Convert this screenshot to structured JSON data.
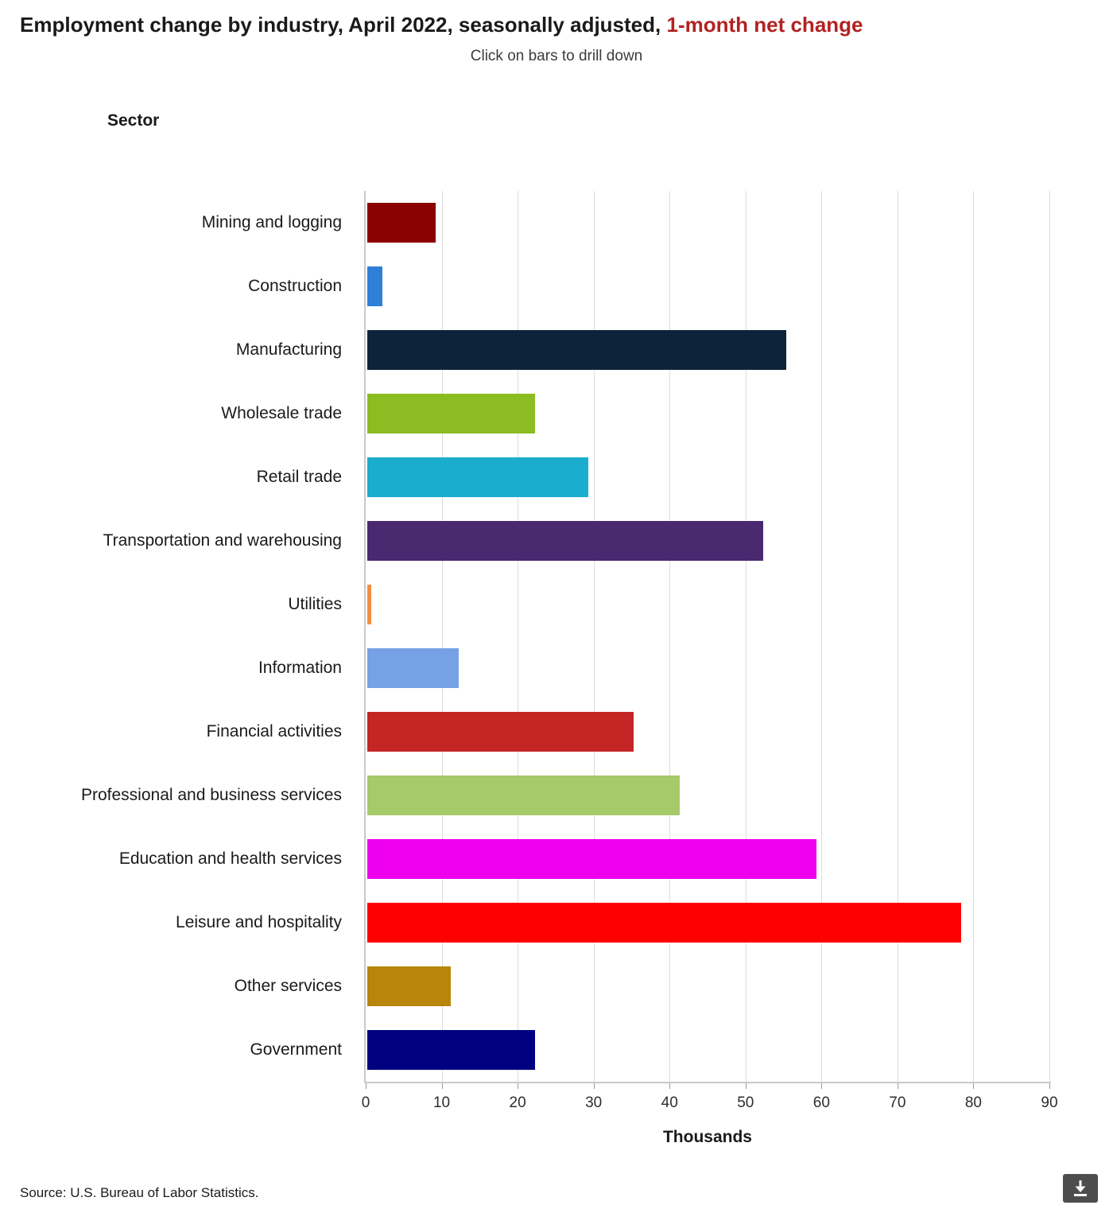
{
  "header": {
    "title_main": "Employment change by industry, April 2022, seasonally adjusted,",
    "title_highlight": "1-month net change",
    "highlight_color": "#b22222",
    "subtitle": "Click on bars to drill down"
  },
  "chart_data": {
    "type": "bar",
    "orientation": "horizontal",
    "axis_title": "Sector",
    "xlabel": "Thousands",
    "xlim": [
      0,
      90
    ],
    "xticks": [
      0,
      10,
      20,
      30,
      40,
      50,
      60,
      70,
      80,
      90
    ],
    "grid": true,
    "categories": [
      "Mining and logging",
      "Construction",
      "Manufacturing",
      "Wholesale trade",
      "Retail trade",
      "Transportation and warehousing",
      "Utilities",
      "Information",
      "Financial activities",
      "Professional and business services",
      "Education and health services",
      "Leisure and hospitality",
      "Other services",
      "Government"
    ],
    "values": [
      9,
      2,
      55,
      22,
      29,
      52,
      0.5,
      12,
      35,
      41,
      59,
      78,
      11,
      22
    ],
    "colors": [
      "#8b0000",
      "#2f7ed8",
      "#0d233a",
      "#8bbc21",
      "#1aadce",
      "#492970",
      "#f28f43",
      "#77a1e5",
      "#c42525",
      "#a6c96a",
      "#ee00ee",
      "#ff0000",
      "#b8860b",
      "#000080"
    ]
  },
  "footer": {
    "source": "Source: U.S. Bureau of Labor Statistics.",
    "download_icon": "download-icon"
  }
}
